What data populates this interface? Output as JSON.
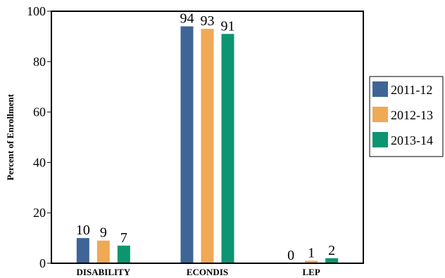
{
  "chart_data": {
    "type": "bar",
    "title": "",
    "xlabel": "",
    "ylabel": "Percent of Enrollment",
    "ylim": [
      0,
      100
    ],
    "yticks": [
      0,
      20,
      40,
      60,
      80,
      100
    ],
    "categories": [
      "DISABILITY",
      "ECONDIS",
      "LEP"
    ],
    "series": [
      {
        "name": "2011-12",
        "color": "#3e6596",
        "values": [
          10,
          94,
          0
        ]
      },
      {
        "name": "2012-13",
        "color": "#f0a955",
        "values": [
          9,
          93,
          1
        ]
      },
      {
        "name": "2013-14",
        "color": "#0c9570",
        "values": [
          7,
          91,
          2
        ]
      }
    ],
    "grid": false,
    "legend_position": "right"
  }
}
